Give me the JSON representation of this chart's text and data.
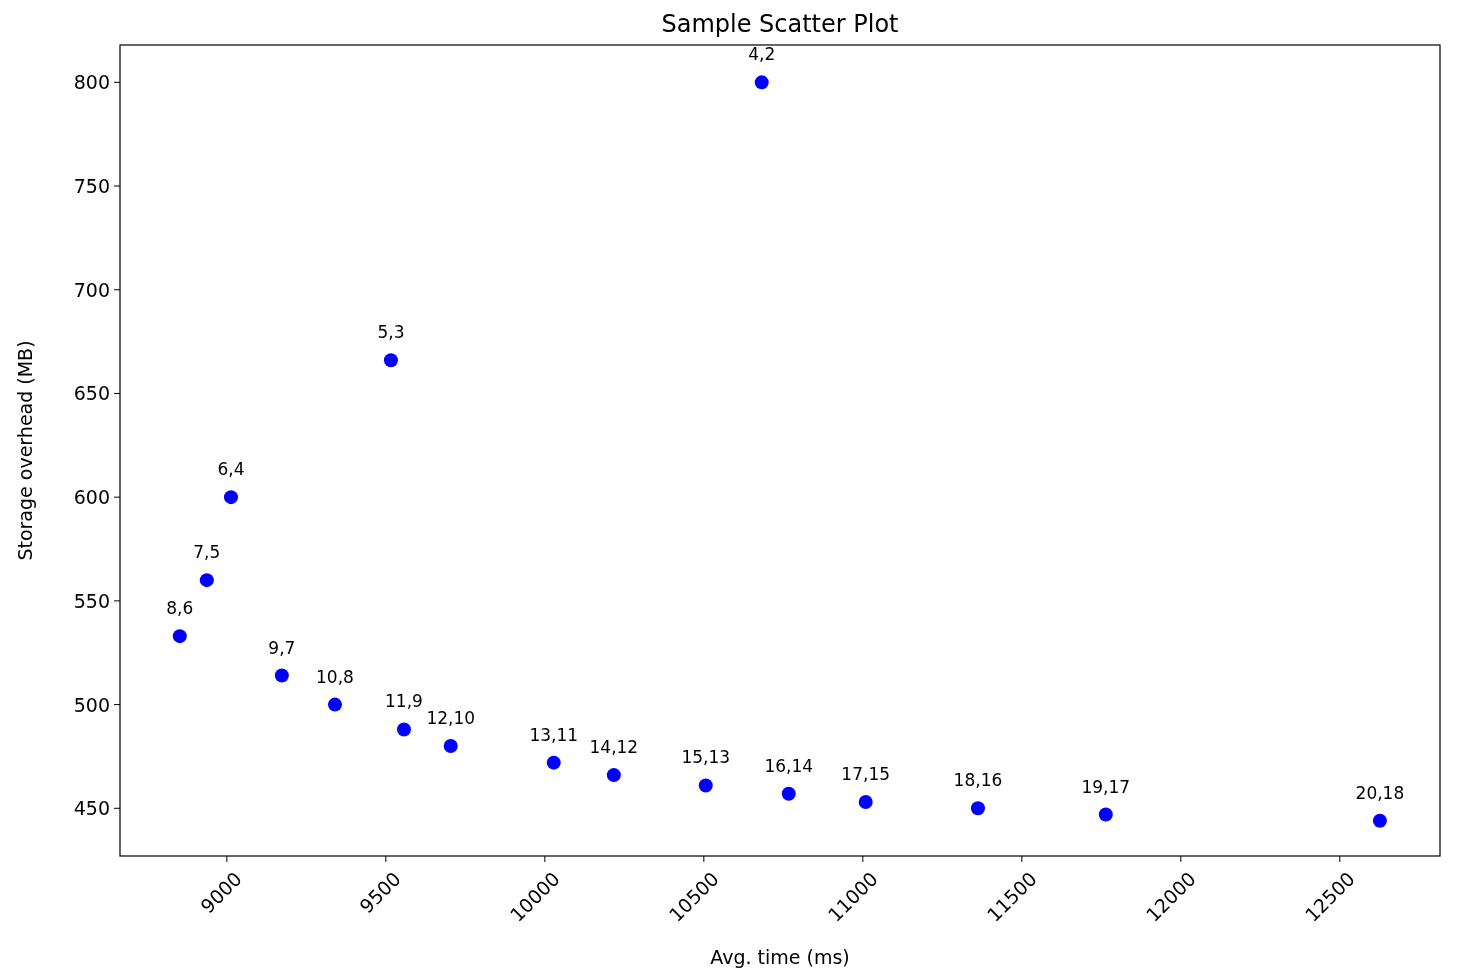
{
  "chart_data": {
    "type": "scatter",
    "title": "Sample Scatter Plot",
    "xlabel": "Avg. time (ms)",
    "ylabel": "Storage overhead (MB)",
    "x": [
      8852,
      8937,
      9013,
      9173,
      9340,
      9516,
      9557,
      9704,
      10028,
      10217,
      10506,
      10682,
      10767,
      11009,
      11362,
      11764,
      12626
    ],
    "series": [
      {
        "color": "#0000ff",
        "values": [
          533,
          560,
          600,
          514,
          500,
          666,
          488,
          480,
          472,
          466,
          461,
          800,
          457,
          453,
          450,
          447,
          444
        ]
      }
    ],
    "marker": "circle",
    "grid": false,
    "xlim": [
      8664,
      12815
    ],
    "xticks": [
      9000,
      9500,
      10000,
      10500,
      11000,
      11500,
      12000,
      12500
    ],
    "ylim": [
      427,
      818
    ],
    "yticks": [
      450,
      500,
      550,
      600,
      650,
      700,
      750,
      800
    ],
    "annotations": [
      {
        "text": "8,6",
        "x": 8852,
        "y": 533
      },
      {
        "text": "7,5",
        "x": 8937,
        "y": 560
      },
      {
        "text": "6,4",
        "x": 9013,
        "y": 600
      },
      {
        "text": "9,7",
        "x": 9173,
        "y": 514
      },
      {
        "text": "10,8",
        "x": 9340,
        "y": 500
      },
      {
        "text": "5,3",
        "x": 9516,
        "y": 666
      },
      {
        "text": "11,9",
        "x": 9557,
        "y": 488
      },
      {
        "text": "12,10",
        "x": 9704,
        "y": 480
      },
      {
        "text": "13,11",
        "x": 10028,
        "y": 472
      },
      {
        "text": "14,12",
        "x": 10217,
        "y": 466
      },
      {
        "text": "15,13",
        "x": 10506,
        "y": 461
      },
      {
        "text": "4,2",
        "x": 10682,
        "y": 800
      },
      {
        "text": "16,14",
        "x": 10767,
        "y": 457
      },
      {
        "text": "17,15",
        "x": 11009,
        "y": 453
      },
      {
        "text": "18,16",
        "x": 11362,
        "y": 450
      },
      {
        "text": "19,17",
        "x": 11764,
        "y": 447
      },
      {
        "text": "20,18",
        "x": 12626,
        "y": 444
      }
    ]
  }
}
